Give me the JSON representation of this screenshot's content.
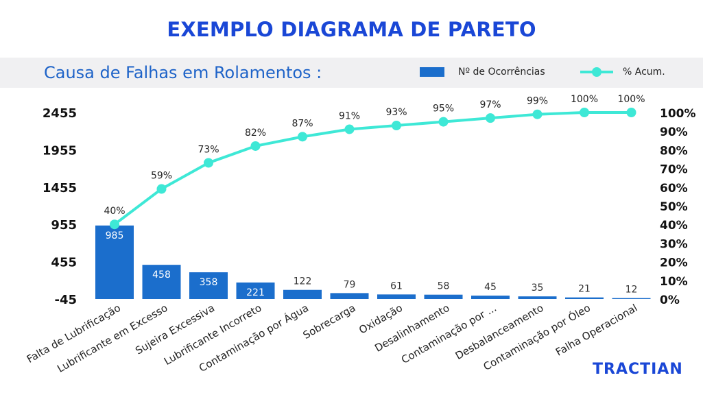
{
  "header": {
    "title": "EXEMPLO DIAGRAMA DE PARETO",
    "subtitle": "Causa de Falhas em Rolamentos :",
    "logo": "TRACTIAN"
  },
  "colors": {
    "title": "#1a47d6",
    "subtitle": "#1e63c8",
    "bar": "#1b6ecc",
    "line": "#3ee8d6",
    "band": "#f0f0f2"
  },
  "chart_data": {
    "type": "bar",
    "categories": [
      "Falta de Lubrificação",
      "Lubrificante em Excesso",
      "Sujeira Excessiva",
      "Lubrificante Incorreto",
      "Contaminação por Água",
      "Sobrecarga",
      "Oxidação",
      "Desalinhamento",
      "Contaminação por ...",
      "Desbalanceamento",
      "Contaminação por Óleo",
      "Falha Operacional"
    ],
    "series": [
      {
        "name": "Nº de Ocorrências",
        "type": "bar",
        "axis": "left",
        "values": [
          985,
          458,
          358,
          221,
          122,
          79,
          61,
          58,
          45,
          35,
          21,
          12
        ]
      },
      {
        "name": "% Acum.",
        "type": "line",
        "axis": "right",
        "values": [
          40,
          59,
          73,
          82,
          87,
          91,
          93,
          95,
          97,
          99,
          100,
          100
        ]
      }
    ],
    "bar_labels": [
      "985",
      "458",
      "358",
      "221",
      "122",
      "79",
      "61",
      "58",
      "45",
      "35",
      "21",
      "12"
    ],
    "line_labels": [
      "40%",
      "59%",
      "73%",
      "82%",
      "87%",
      "91%",
      "93%",
      "95%",
      "97%",
      "99%",
      "100%",
      "100%"
    ],
    "y_left_ticks": [
      "-45",
      "455",
      "955",
      "1455",
      "1955",
      "2455"
    ],
    "y_left_range": [
      -45,
      2455
    ],
    "y_right_ticks": [
      "0%",
      "10%",
      "20%",
      "30%",
      "40%",
      "50%",
      "60%",
      "70%",
      "80%",
      "90%",
      "100%"
    ],
    "y_right_range": [
      0,
      100
    ],
    "grid": false,
    "legend_position": "top-right"
  }
}
